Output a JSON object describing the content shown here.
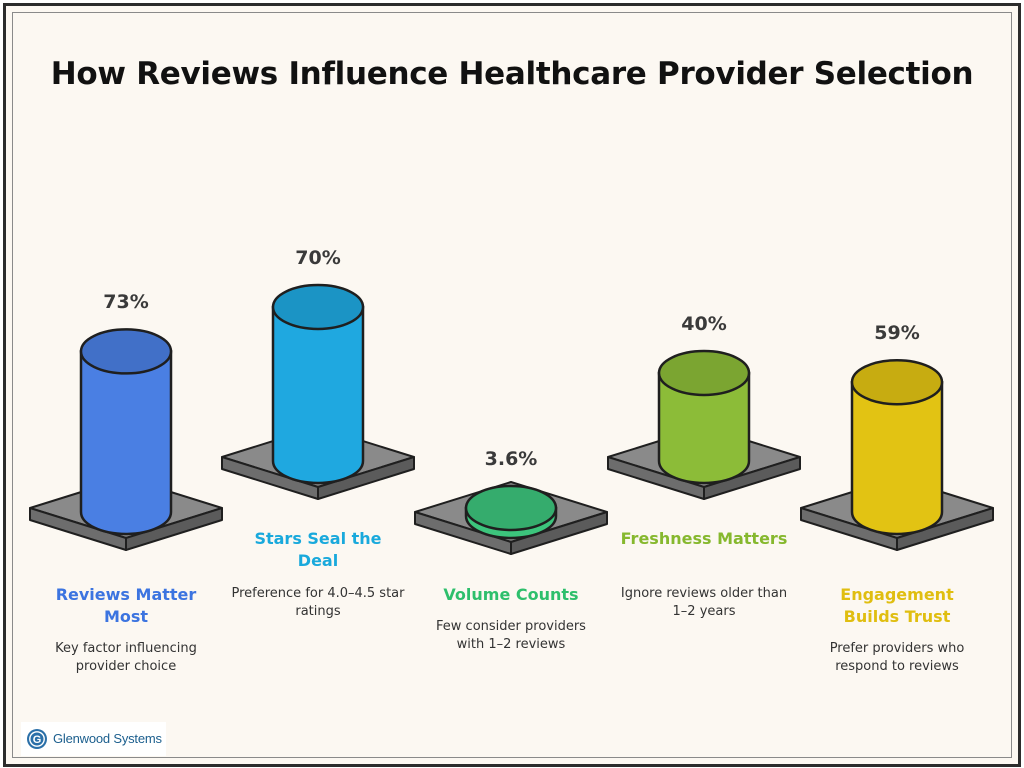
{
  "chart_data": {
    "type": "bar",
    "title": "How Reviews Influence Healthcare Provider Selection",
    "categories": [
      "Reviews Matter Most",
      "Stars Seal the Deal",
      "Volume Counts",
      "Freshness Matters",
      "Engagement Builds Trust"
    ],
    "values": [
      73,
      70,
      3.6,
      40,
      59
    ],
    "value_labels": [
      "73%",
      "70%",
      "3.6%",
      "40%",
      "59%"
    ],
    "descriptions": [
      "Key factor influencing provider choice",
      "Preference for 4.0–4.5 star ratings",
      "Few consider providers with 1–2 reviews",
      "Ignore reviews older than 1–2 years",
      "Prefer providers who respond to reviews"
    ],
    "colors": [
      "#4a7fe3",
      "#1fa8e0",
      "#3cc47c",
      "#8cbc38",
      "#e2c313"
    ],
    "title_colors": [
      "#3c74e0",
      "#19a9dc",
      "#2ebf6c",
      "#86b82e",
      "#e0be10"
    ]
  },
  "logo": {
    "text": "Glenwood Systems",
    "mark_letter": "G"
  }
}
